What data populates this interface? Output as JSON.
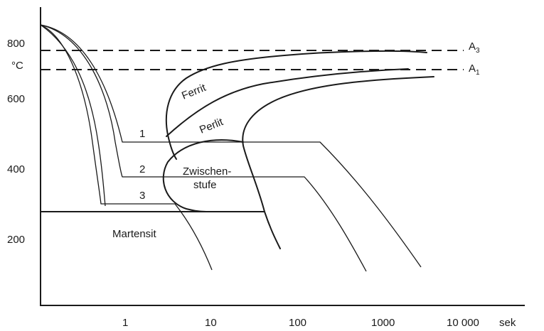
{
  "y_axis": {
    "unit": "°C",
    "ticks": [
      "800",
      "600",
      "400",
      "200"
    ]
  },
  "x_axis": {
    "unit": "sek",
    "ticks": [
      "1",
      "10",
      "100",
      "1000",
      "10 000"
    ]
  },
  "reference_lines": {
    "a3": {
      "base": "A",
      "sub": "3"
    },
    "a1": {
      "base": "A",
      "sub": "1"
    }
  },
  "regions": {
    "ferrit": "Ferrit",
    "perlit": "Perlit",
    "zwischenstufe_line1": "Zwischen-",
    "zwischenstufe_line2": "stufe",
    "martensit": "Martensit"
  },
  "cooling_curves": [
    "1",
    "2",
    "3"
  ]
}
